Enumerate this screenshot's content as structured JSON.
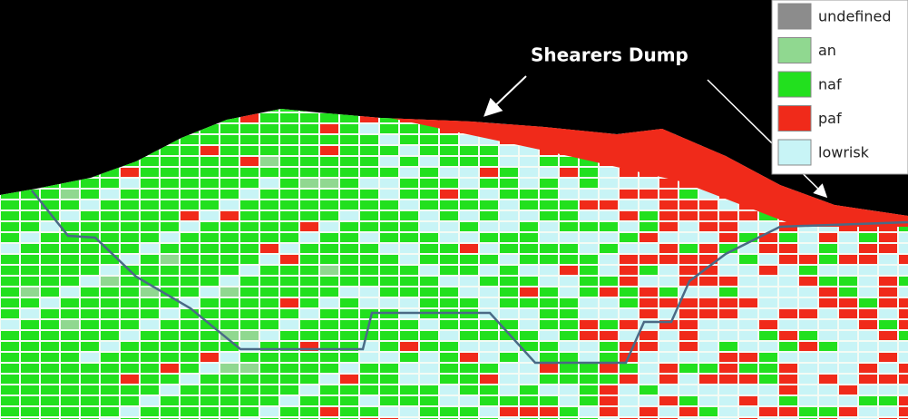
{
  "annotation": "Shearers Dump",
  "legend": {
    "items": [
      {
        "label": "undefined",
        "color": "#8c8c8c"
      },
      {
        "label": "an",
        "color": "#90d890"
      },
      {
        "label": "naf",
        "color": "#22e01e"
      },
      {
        "label": "paf",
        "color": "#f02a1a"
      },
      {
        "label": "lowrisk",
        "color": "#c8f4f6"
      }
    ]
  }
}
